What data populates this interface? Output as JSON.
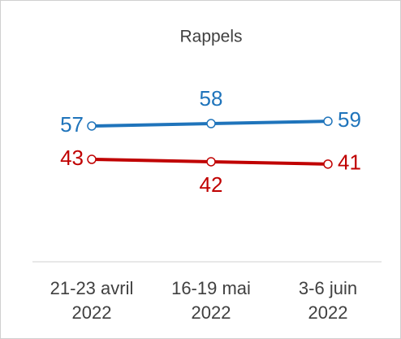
{
  "chart_data": {
    "type": "line",
    "title": "Rappels",
    "categories": [
      "21-23 avril 2022",
      "16-19 mai 2022",
      "3-6 juin 2022"
    ],
    "series": [
      {
        "color": "#1f74bb",
        "values": [
          57,
          58,
          59
        ]
      },
      {
        "color": "#c00000",
        "values": [
          43,
          42,
          41
        ]
      }
    ],
    "ylim": [
      0,
      100
    ]
  }
}
